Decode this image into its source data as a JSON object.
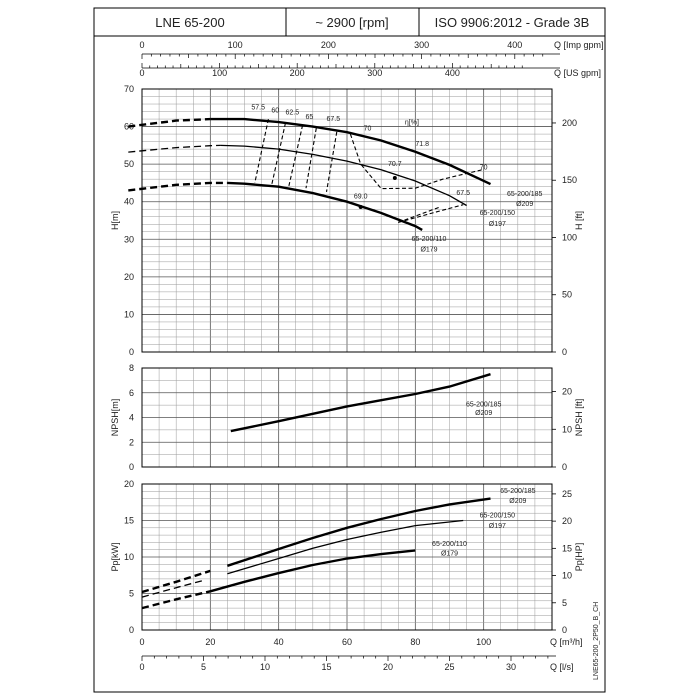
{
  "header": {
    "model": "LNE 65-200",
    "speed": "~ 2900 [rpm]",
    "standard": "ISO 9906:2012 - Grade 3B"
  },
  "side_code": "LNE65-200_2P50_B_CH",
  "chart_data": [
    {
      "type": "line",
      "name_of_panel": "head",
      "xlabel": "Q [m³/h]",
      "ylabel": "H[m]",
      "y2label": "H [ft]",
      "xlim": [
        0,
        120
      ],
      "ylim": [
        0,
        70
      ],
      "y_ticks": [
        "0",
        "10",
        "20",
        "30",
        "40",
        "50",
        "60",
        "70"
      ],
      "y2_ticks": [
        "0",
        "50",
        "100",
        "150",
        "200"
      ],
      "y2_ft_per_m": 3.2808,
      "top_axes": [
        {
          "label": "Q [Imp gpm]",
          "factor": 3.666,
          "ticks": [
            "0",
            "100",
            "200",
            "300",
            "400"
          ]
        },
        {
          "label": "Q [US gpm]",
          "factor": 4.403,
          "ticks": [
            "0",
            "100",
            "200",
            "300",
            "400"
          ]
        }
      ],
      "series": [
        {
          "name": "65-200/185",
          "name2": "Ø209",
          "weight": "bold",
          "dashed": [
            [
              -4,
              60.0
            ],
            [
              10,
              61.6
            ],
            [
              20,
              62.0
            ]
          ],
          "solid": [
            [
              20,
              62.0
            ],
            [
              30,
              62.0
            ],
            [
              40,
              61.2
            ],
            [
              50,
              60.0
            ],
            [
              60,
              58.5
            ],
            [
              70,
              56.3
            ],
            [
              80,
              53.3
            ],
            [
              90,
              49.8
            ],
            [
              102,
              44.7
            ]
          ]
        },
        {
          "name": "65-200/150",
          "name2": "Ø197",
          "weight": "normal",
          "dashed": [
            [
              -4,
              53.2
            ],
            [
              10,
              54.4
            ],
            [
              20,
              54.9
            ],
            [
              23,
              55.0
            ]
          ],
          "solid": [
            [
              23,
              55.0
            ],
            [
              30,
              54.8
            ],
            [
              40,
              54.0
            ],
            [
              50,
              52.6
            ],
            [
              60,
              50.8
            ],
            [
              70,
              48.5
            ],
            [
              80,
              45.5
            ],
            [
              90,
              41.6
            ],
            [
              95,
              39.0
            ]
          ]
        },
        {
          "name": "65-200/110",
          "name2": "Ø179",
          "weight": "bold",
          "dashed": [
            [
              -4,
              43.0
            ],
            [
              10,
              44.5
            ],
            [
              20,
              45.0
            ],
            [
              25,
              45.0
            ]
          ],
          "solid": [
            [
              25,
              45.0
            ],
            [
              30,
              44.8
            ],
            [
              40,
              44.0
            ],
            [
              50,
              42.3
            ],
            [
              60,
              40.0
            ],
            [
              70,
              37.0
            ],
            [
              80,
              33.5
            ],
            [
              82,
              32.5
            ]
          ]
        }
      ],
      "efficiency_label": "η[%]",
      "efficiency_values": [
        "57.5",
        "60",
        "62.5",
        "65",
        "67.5",
        "70",
        "70.7",
        "71.8",
        "69.0",
        "70",
        "67.5"
      ]
    },
    {
      "type": "line",
      "name_of_panel": "npsh",
      "ylabel": "NPSH[m]",
      "y2label": "NPSH [ft]",
      "ylim": [
        0,
        8
      ],
      "y_ticks": [
        "0",
        "2",
        "4",
        "6",
        "8"
      ],
      "y2_ticks": [
        "0",
        "10",
        "20"
      ],
      "y2_ft_per_m": 3.2808,
      "series": [
        {
          "name": "65-200/185",
          "name2": "Ø209",
          "weight": "bold",
          "solid": [
            [
              26,
              2.9
            ],
            [
              40,
              3.7
            ],
            [
              50,
              4.3
            ],
            [
              60,
              4.9
            ],
            [
              70,
              5.4
            ],
            [
              80,
              5.9
            ],
            [
              90,
              6.5
            ],
            [
              102,
              7.5
            ]
          ]
        }
      ]
    },
    {
      "type": "line",
      "name_of_panel": "power",
      "ylabel": "Pp[kW]",
      "y2label": "Pp[HP]",
      "xlabel": "Q [m³/h]",
      "x2label": "Q [l/s]",
      "ylim": [
        0,
        20
      ],
      "y_ticks": [
        "0",
        "5",
        "10",
        "15",
        "20"
      ],
      "y2_ticks": [
        "0",
        "5",
        "10",
        "15",
        "20",
        "25"
      ],
      "y2_hp_per_kw": 1.341,
      "x_ticks": [
        "0",
        "20",
        "40",
        "60",
        "80",
        "100"
      ],
      "x2_ticks": [
        "0",
        "5",
        "10",
        "15",
        "20",
        "25",
        "30"
      ],
      "series": [
        {
          "name": "65-200/185",
          "name2": "Ø209",
          "weight": "bold",
          "dashed": [
            [
              0,
              5.2
            ],
            [
              10,
              6.6
            ],
            [
              20,
              8.1
            ]
          ],
          "solid": [
            [
              25,
              8.8
            ],
            [
              40,
              11.1
            ],
            [
              50,
              12.6
            ],
            [
              60,
              14.0
            ],
            [
              70,
              15.2
            ],
            [
              80,
              16.3
            ],
            [
              90,
              17.2
            ],
            [
              102,
              18.0
            ]
          ]
        },
        {
          "name": "65-200/150",
          "name2": "Ø197",
          "weight": "normal",
          "dashed": [
            [
              0,
              4.5
            ],
            [
              10,
              5.8
            ],
            [
              18,
              6.8
            ]
          ],
          "solid": [
            [
              25,
              7.7
            ],
            [
              40,
              9.8
            ],
            [
              50,
              11.2
            ],
            [
              60,
              12.4
            ],
            [
              70,
              13.4
            ],
            [
              80,
              14.3
            ],
            [
              94,
              15.0
            ]
          ]
        },
        {
          "name": "65-200/110",
          "name2": "Ø179",
          "weight": "bold",
          "dashed": [
            [
              0,
              3.0
            ],
            [
              10,
              4.2
            ],
            [
              20,
              5.3
            ]
          ],
          "solid": [
            [
              20,
              5.3
            ],
            [
              30,
              6.6
            ],
            [
              40,
              7.8
            ],
            [
              50,
              8.9
            ],
            [
              60,
              9.8
            ],
            [
              70,
              10.4
            ],
            [
              80,
              10.9
            ]
          ]
        }
      ]
    }
  ]
}
